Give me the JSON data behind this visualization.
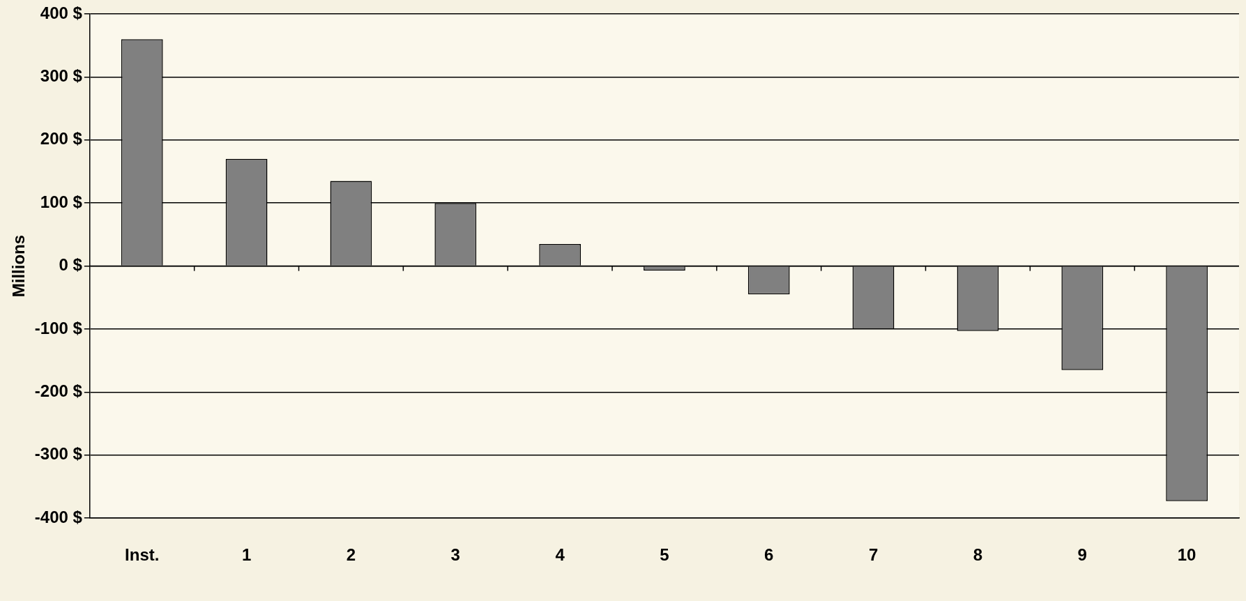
{
  "chart_data": {
    "type": "bar",
    "ylabel": "Millions",
    "categories": [
      "Inst.",
      "1",
      "2",
      "3",
      "4",
      "5",
      "6",
      "7",
      "8",
      "9",
      "10"
    ],
    "values": [
      360,
      170,
      135,
      100,
      35,
      -7,
      -45,
      -100,
      -103,
      -165,
      -373
    ],
    "color": "#808080",
    "ylim": [
      -400,
      400
    ],
    "yticks": [
      {
        "value": -400,
        "label": "-400 $"
      },
      {
        "value": -300,
        "label": "-300 $"
      },
      {
        "value": -200,
        "label": "-200 $"
      },
      {
        "value": -100,
        "label": "-100 $"
      },
      {
        "value": 0,
        "label": "0 $"
      },
      {
        "value": 100,
        "label": "100 $"
      },
      {
        "value": 200,
        "label": "200 $"
      },
      {
        "value": 300,
        "label": "300 $"
      },
      {
        "value": 400,
        "label": "400 $"
      }
    ],
    "grid": "y",
    "legend": false
  }
}
